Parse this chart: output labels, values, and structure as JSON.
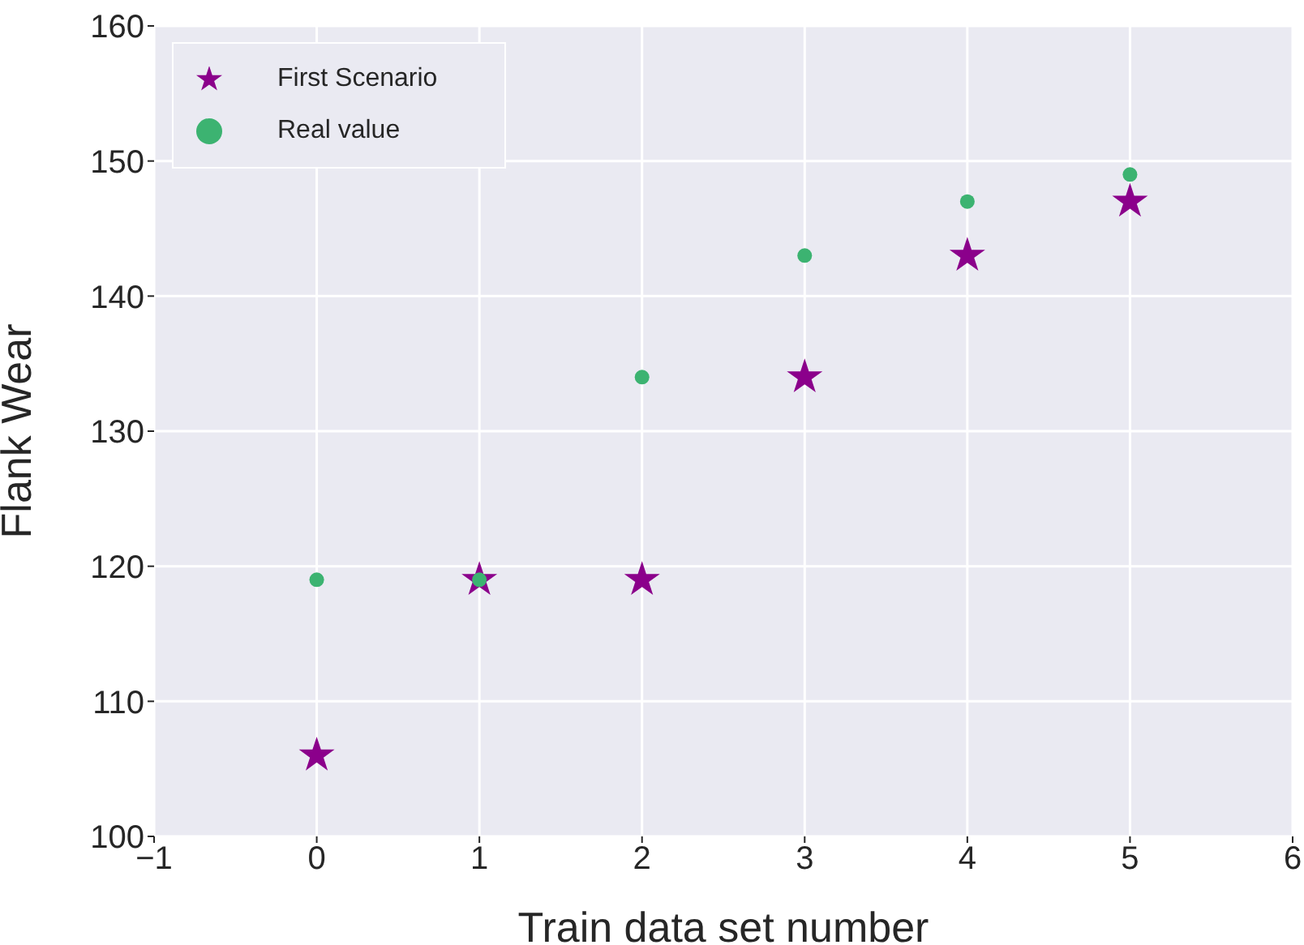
{
  "chart_data": {
    "type": "scatter",
    "xlabel": "Train data set number",
    "ylabel": "Flank Wear",
    "x": [
      0,
      1,
      2,
      3,
      4,
      5
    ],
    "series": [
      {
        "name": "First Scenario",
        "color": "#8b008b",
        "marker": "star",
        "values": [
          106,
          119,
          119,
          134,
          143,
          147
        ]
      },
      {
        "name": "Real value",
        "color": "#3cb371",
        "marker": "circle",
        "values": [
          119,
          119,
          134,
          143,
          147,
          149
        ]
      }
    ],
    "xlim": [
      -1,
      6
    ],
    "xticks": [
      -1,
      0,
      1,
      2,
      3,
      4,
      5,
      6
    ],
    "ylim": [
      100,
      160
    ],
    "yticks": [
      100,
      110,
      120,
      130,
      140,
      150,
      160
    ],
    "grid": true,
    "legend": "top left"
  }
}
